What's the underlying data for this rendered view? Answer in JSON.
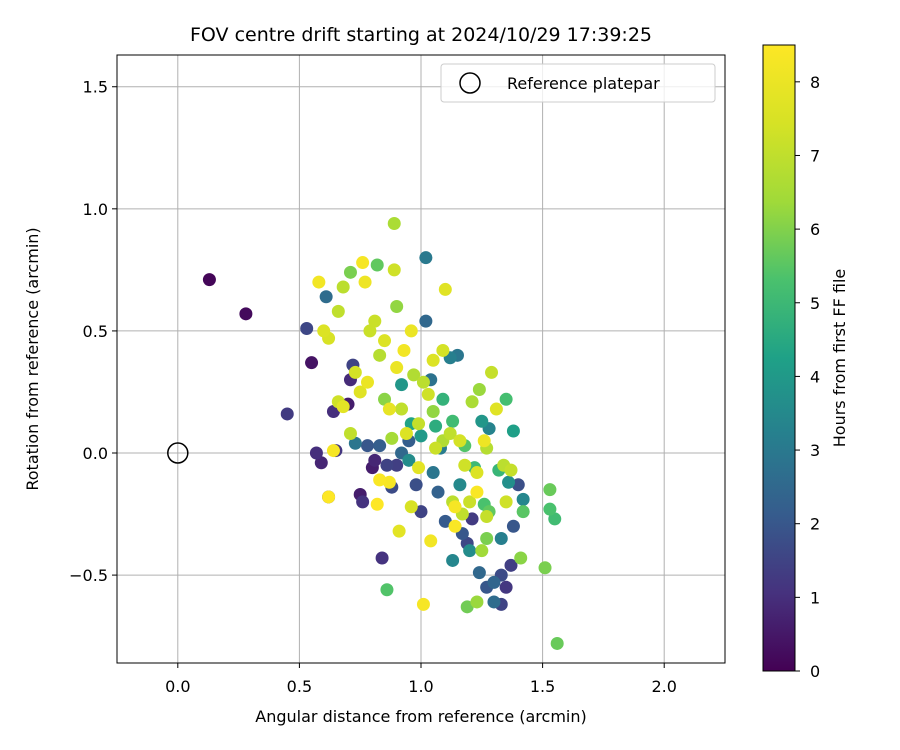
{
  "chart_data": {
    "type": "scatter",
    "title": "FOV centre drift starting at 2024/10/29 17:39:25",
    "xlabel": "Angular distance from reference (arcmin)",
    "ylabel": "Rotation from reference (arcmin)",
    "xlim": [
      -0.25,
      2.25
    ],
    "ylim": [
      -0.86,
      1.63
    ],
    "xticks": [
      0.0,
      0.5,
      1.0,
      1.5,
      2.0
    ],
    "xtick_labels": [
      "0.0",
      "0.5",
      "1.0",
      "1.5",
      "2.0"
    ],
    "yticks": [
      -0.5,
      0.0,
      0.5,
      1.0,
      1.5
    ],
    "ytick_labels": [
      "−0.5",
      "0.0",
      "0.5",
      "1.0",
      "1.5"
    ],
    "grid": true,
    "legend": {
      "placement": "top-right",
      "entries": [
        "Reference platepar"
      ]
    },
    "reference_point": {
      "label": "Reference platepar",
      "x": 0.0,
      "y": 0.0,
      "marker": "open-circle"
    },
    "colorbar": {
      "label": "Hours from first FF file",
      "range": [
        0,
        8.5
      ],
      "ticks": [
        0,
        1,
        2,
        3,
        4,
        5,
        6,
        7,
        8
      ],
      "colormap": "viridis"
    },
    "points": [
      [
        0.13,
        0.71,
        0.1
      ],
      [
        0.28,
        0.57,
        0.2
      ],
      [
        0.45,
        0.16,
        1.3
      ],
      [
        0.53,
        0.51,
        1.6
      ],
      [
        0.55,
        0.37,
        0.4
      ],
      [
        0.57,
        0.0,
        1.0
      ],
      [
        0.59,
        -0.04,
        0.8
      ],
      [
        0.61,
        0.64,
        2.6
      ],
      [
        0.62,
        -0.18,
        1.4
      ],
      [
        0.64,
        0.17,
        1.0
      ],
      [
        0.65,
        0.01,
        1.2
      ],
      [
        0.7,
        0.2,
        0.6
      ],
      [
        0.71,
        0.3,
        0.9
      ],
      [
        0.72,
        0.36,
        1.5
      ],
      [
        0.73,
        0.04,
        2.9
      ],
      [
        0.75,
        -0.17,
        0.6
      ],
      [
        0.76,
        -0.2,
        1.1
      ],
      [
        0.78,
        0.03,
        2.0
      ],
      [
        0.8,
        -0.06,
        0.6
      ],
      [
        0.81,
        -0.03,
        0.8
      ],
      [
        0.83,
        0.03,
        2.2
      ],
      [
        0.84,
        -0.43,
        1.1
      ],
      [
        0.86,
        -0.05,
        1.5
      ],
      [
        0.88,
        -0.14,
        1.7
      ],
      [
        0.9,
        -0.05,
        1.4
      ],
      [
        0.92,
        0.0,
        2.5
      ],
      [
        0.95,
        0.05,
        2.2
      ],
      [
        0.98,
        -0.13,
        1.8
      ],
      [
        1.0,
        -0.24,
        1.5
      ],
      [
        1.02,
        0.8,
        3.0
      ],
      [
        1.02,
        0.54,
        2.5
      ],
      [
        1.04,
        0.3,
        2.8
      ],
      [
        1.05,
        -0.08,
        2.9
      ],
      [
        1.07,
        -0.16,
        2.3
      ],
      [
        1.1,
        -0.28,
        2.1
      ],
      [
        1.12,
        0.39,
        3.2
      ],
      [
        1.15,
        0.4,
        2.9
      ],
      [
        1.17,
        -0.33,
        2.0
      ],
      [
        1.19,
        -0.37,
        1.6
      ],
      [
        1.21,
        -0.27,
        1.3
      ],
      [
        1.24,
        -0.49,
        2.5
      ],
      [
        1.27,
        -0.55,
        2.0
      ],
      [
        1.3,
        -0.53,
        2.4
      ],
      [
        1.33,
        -0.5,
        1.7
      ],
      [
        1.35,
        -0.55,
        1.2
      ],
      [
        1.37,
        -0.46,
        1.4
      ],
      [
        1.38,
        -0.3,
        2.0
      ],
      [
        1.4,
        -0.13,
        1.8
      ],
      [
        1.33,
        -0.62,
        1.5
      ],
      [
        1.3,
        -0.61,
        2.6
      ],
      [
        1.13,
        -0.44,
        3.4
      ],
      [
        1.2,
        -0.4,
        3.6
      ],
      [
        1.16,
        -0.13,
        3.5
      ],
      [
        1.25,
        0.13,
        3.9
      ],
      [
        1.28,
        0.1,
        3.3
      ],
      [
        1.36,
        -0.12,
        3.7
      ],
      [
        1.33,
        -0.35,
        3.2
      ],
      [
        1.38,
        0.09,
        4.2
      ],
      [
        1.42,
        -0.19,
        3.4
      ],
      [
        1.08,
        0.02,
        3.1
      ],
      [
        0.95,
        -0.03,
        3.6
      ],
      [
        0.92,
        0.28,
        3.9
      ],
      [
        0.96,
        0.12,
        4.3
      ],
      [
        1.0,
        0.07,
        4.0
      ],
      [
        1.06,
        0.11,
        4.6
      ],
      [
        1.09,
        0.22,
        4.8
      ],
      [
        1.13,
        0.13,
        5.1
      ],
      [
        1.18,
        0.03,
        5.4
      ],
      [
        1.22,
        -0.06,
        5.0
      ],
      [
        1.26,
        -0.21,
        5.3
      ],
      [
        1.28,
        -0.24,
        5.6
      ],
      [
        1.32,
        -0.07,
        4.9
      ],
      [
        1.35,
        0.22,
        5.2
      ],
      [
        1.42,
        -0.24,
        5.5
      ],
      [
        1.53,
        -0.15,
        5.7
      ],
      [
        1.53,
        -0.23,
        5.3
      ],
      [
        1.55,
        -0.27,
        5.1
      ],
      [
        1.51,
        -0.47,
        5.9
      ],
      [
        1.56,
        -0.78,
        5.7
      ],
      [
        1.41,
        -0.43,
        6.1
      ],
      [
        1.27,
        -0.35,
        5.9
      ],
      [
        1.23,
        -0.61,
        6.3
      ],
      [
        1.19,
        -0.63,
        5.8
      ],
      [
        1.25,
        -0.4,
        6.4
      ],
      [
        0.86,
        -0.56,
        5.4
      ],
      [
        0.71,
        0.74,
        5.9
      ],
      [
        0.82,
        0.77,
        5.6
      ],
      [
        0.89,
        0.94,
        6.6
      ],
      [
        0.9,
        0.6,
        6.2
      ],
      [
        0.83,
        0.4,
        6.8
      ],
      [
        0.85,
        0.22,
        6.1
      ],
      [
        0.88,
        0.06,
        6.5
      ],
      [
        0.92,
        0.18,
        7.0
      ],
      [
        0.97,
        0.32,
        6.7
      ],
      [
        1.01,
        0.29,
        6.9
      ],
      [
        1.05,
        0.17,
        6.2
      ],
      [
        1.09,
        0.05,
        6.7
      ],
      [
        1.13,
        -0.2,
        6.9
      ],
      [
        1.17,
        -0.25,
        7.0
      ],
      [
        1.21,
        0.21,
        6.6
      ],
      [
        1.24,
        0.26,
        6.3
      ],
      [
        1.27,
        0.02,
        6.8
      ],
      [
        1.29,
        0.33,
        7.1
      ],
      [
        1.34,
        -0.05,
        6.9
      ],
      [
        1.37,
        -0.07,
        7.1
      ],
      [
        0.62,
        0.47,
        7.5
      ],
      [
        0.66,
        0.58,
        7.0
      ],
      [
        0.68,
        0.68,
        6.9
      ],
      [
        0.58,
        0.7,
        8.2
      ],
      [
        0.6,
        0.5,
        7.6
      ],
      [
        0.73,
        0.33,
        7.4
      ],
      [
        0.78,
        0.29,
        8.0
      ],
      [
        0.79,
        0.5,
        7.2
      ],
      [
        0.75,
        0.25,
        7.7
      ],
      [
        0.68,
        0.19,
        7.8
      ],
      [
        0.62,
        -0.18,
        8.5
      ],
      [
        0.64,
        0.01,
        8.3
      ],
      [
        0.82,
        -0.21,
        8.5
      ],
      [
        0.83,
        -0.11,
        8.4
      ],
      [
        0.87,
        -0.12,
        8.3
      ],
      [
        0.91,
        -0.32,
        7.8
      ],
      [
        0.96,
        -0.22,
        7.5
      ],
      [
        1.01,
        -0.62,
        8.3
      ],
      [
        1.04,
        -0.36,
        8.2
      ],
      [
        1.14,
        -0.3,
        8.4
      ],
      [
        1.14,
        -0.22,
        8.3
      ],
      [
        1.23,
        -0.16,
        8.4
      ],
      [
        1.1,
        0.67,
        7.7
      ],
      [
        1.09,
        0.42,
        7.4
      ],
      [
        1.05,
        0.38,
        7.6
      ],
      [
        1.03,
        0.24,
        7.3
      ],
      [
        0.99,
        0.12,
        7.1
      ],
      [
        0.96,
        0.5,
        8.0
      ],
      [
        0.93,
        0.42,
        8.2
      ],
      [
        0.9,
        0.35,
        8.0
      ],
      [
        0.87,
        0.18,
        7.9
      ],
      [
        0.85,
        0.46,
        7.6
      ],
      [
        0.81,
        0.54,
        7.2
      ],
      [
        0.77,
        0.7,
        8.1
      ],
      [
        0.76,
        0.78,
        8.3
      ],
      [
        0.89,
        0.75,
        7.3
      ],
      [
        0.94,
        0.08,
        7.6
      ],
      [
        0.99,
        -0.06,
        7.8
      ],
      [
        1.06,
        0.02,
        7.2
      ],
      [
        1.12,
        0.08,
        7.0
      ],
      [
        1.16,
        0.05,
        7.4
      ],
      [
        1.18,
        -0.05,
        7.3
      ],
      [
        1.23,
        -0.08,
        7.6
      ],
      [
        1.26,
        0.05,
        8.1
      ],
      [
        1.31,
        0.18,
        7.7
      ],
      [
        1.35,
        -0.2,
        7.3
      ],
      [
        1.27,
        -0.26,
        7.1
      ],
      [
        1.2,
        -0.2,
        7.2
      ],
      [
        0.71,
        0.08,
        7.0
      ],
      [
        0.66,
        0.21,
        7.3
      ]
    ]
  }
}
